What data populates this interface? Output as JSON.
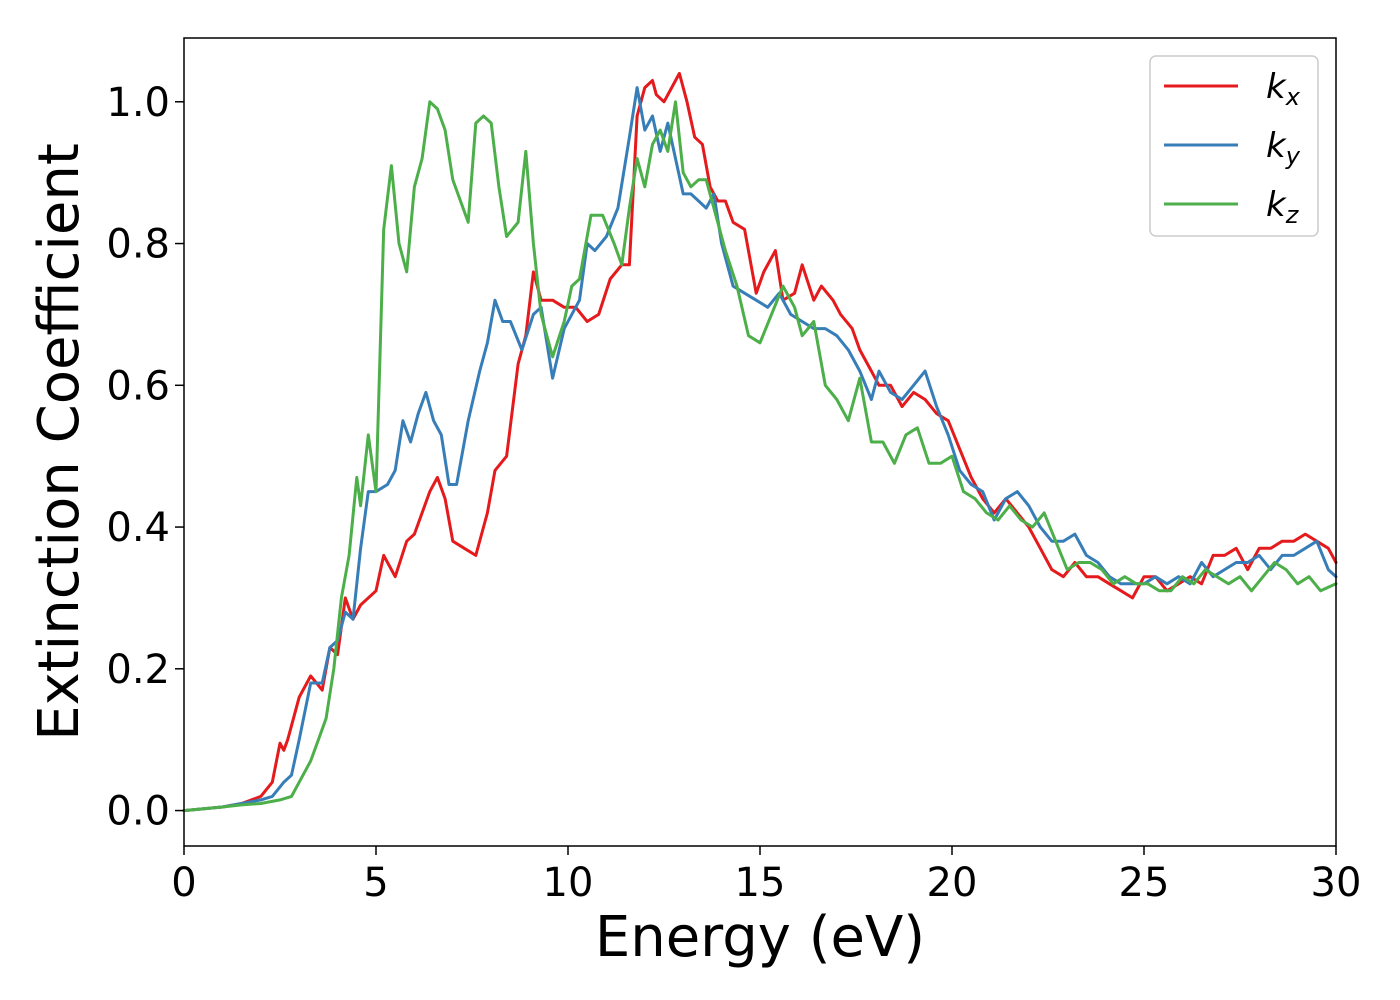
{
  "chart_data": {
    "type": "line",
    "xlabel": "Energy (eV)",
    "ylabel": "Extinction Coefficient",
    "xlim": [
      0,
      30
    ],
    "ylim": [
      -0.05,
      1.09
    ],
    "xticks": [
      "0",
      "5",
      "10",
      "15",
      "20",
      "25",
      "30"
    ],
    "yticks": [
      "0.0",
      "0.2",
      "0.4",
      "0.6",
      "0.8",
      "1.0"
    ],
    "grid": false,
    "legend_position": "top-right",
    "series": [
      {
        "name": "k",
        "subscript": "x",
        "color": "#e41a1c",
        "x": [
          0,
          1,
          1.5,
          2,
          2.3,
          2.5,
          2.6,
          2.7,
          3.0,
          3.3,
          3.6,
          3.8,
          4.0,
          4.2,
          4.4,
          4.6,
          5.0,
          5.2,
          5.5,
          5.8,
          6.0,
          6.4,
          6.6,
          6.8,
          7.0,
          7.3,
          7.6,
          7.9,
          8.1,
          8.4,
          8.7,
          8.9,
          9.1,
          9.3,
          9.6,
          9.9,
          10.2,
          10.5,
          10.8,
          11.1,
          11.4,
          11.6,
          11.8,
          12.0,
          12.2,
          12.3,
          12.5,
          12.7,
          12.9,
          13.1,
          13.3,
          13.5,
          13.7,
          13.9,
          14.1,
          14.3,
          14.6,
          14.9,
          15.1,
          15.4,
          15.6,
          15.9,
          16.1,
          16.4,
          16.6,
          16.9,
          17.1,
          17.4,
          17.6,
          17.9,
          18.1,
          18.4,
          18.7,
          19.0,
          19.3,
          19.6,
          19.9,
          20.2,
          20.5,
          20.8,
          21.1,
          21.4,
          21.7,
          22.0,
          22.3,
          22.6,
          22.9,
          23.2,
          23.5,
          23.8,
          24.1,
          24.4,
          24.7,
          25.0,
          25.3,
          25.6,
          25.9,
          26.2,
          26.5,
          26.8,
          27.1,
          27.4,
          27.7,
          28.0,
          28.3,
          28.6,
          28.9,
          29.2,
          29.5,
          29.8,
          30.0
        ],
        "values": [
          0.0,
          0.005,
          0.01,
          0.02,
          0.04,
          0.095,
          0.085,
          0.1,
          0.16,
          0.19,
          0.17,
          0.23,
          0.22,
          0.3,
          0.27,
          0.29,
          0.31,
          0.36,
          0.33,
          0.38,
          0.39,
          0.45,
          0.47,
          0.44,
          0.38,
          0.37,
          0.36,
          0.42,
          0.48,
          0.5,
          0.63,
          0.67,
          0.76,
          0.72,
          0.72,
          0.71,
          0.71,
          0.69,
          0.7,
          0.75,
          0.77,
          0.77,
          0.98,
          1.02,
          1.03,
          1.01,
          1.0,
          1.02,
          1.04,
          1.0,
          0.95,
          0.94,
          0.88,
          0.86,
          0.86,
          0.83,
          0.82,
          0.73,
          0.76,
          0.79,
          0.72,
          0.73,
          0.77,
          0.72,
          0.74,
          0.72,
          0.7,
          0.68,
          0.65,
          0.62,
          0.6,
          0.6,
          0.57,
          0.59,
          0.58,
          0.56,
          0.55,
          0.51,
          0.47,
          0.44,
          0.42,
          0.44,
          0.42,
          0.4,
          0.37,
          0.34,
          0.33,
          0.35,
          0.33,
          0.33,
          0.32,
          0.31,
          0.3,
          0.33,
          0.33,
          0.31,
          0.32,
          0.33,
          0.32,
          0.36,
          0.36,
          0.37,
          0.34,
          0.37,
          0.37,
          0.38,
          0.38,
          0.39,
          0.38,
          0.37,
          0.35
        ]
      },
      {
        "name": "k",
        "subscript": "y",
        "color": "#377eb8",
        "x": [
          0,
          1,
          1.5,
          2,
          2.3,
          2.6,
          2.8,
          3.0,
          3.3,
          3.6,
          3.8,
          4.0,
          4.2,
          4.4,
          4.6,
          4.8,
          5.0,
          5.3,
          5.5,
          5.7,
          5.9,
          6.1,
          6.3,
          6.5,
          6.7,
          6.9,
          7.1,
          7.4,
          7.7,
          7.9,
          8.1,
          8.3,
          8.5,
          8.8,
          9.1,
          9.3,
          9.6,
          9.9,
          10.1,
          10.3,
          10.5,
          10.7,
          11.0,
          11.3,
          11.6,
          11.8,
          12.0,
          12.2,
          12.4,
          12.6,
          12.8,
          13.0,
          13.2,
          13.4,
          13.6,
          13.8,
          14.0,
          14.3,
          14.6,
          14.9,
          15.2,
          15.5,
          15.8,
          16.1,
          16.4,
          16.7,
          17.0,
          17.3,
          17.6,
          17.9,
          18.1,
          18.4,
          18.7,
          19.0,
          19.3,
          19.6,
          19.9,
          20.2,
          20.5,
          20.8,
          21.1,
          21.4,
          21.7,
          22.0,
          22.3,
          22.6,
          22.9,
          23.2,
          23.5,
          23.8,
          24.1,
          24.4,
          24.7,
          25.0,
          25.3,
          25.6,
          25.9,
          26.2,
          26.5,
          26.8,
          27.1,
          27.4,
          27.7,
          28.0,
          28.3,
          28.6,
          28.9,
          29.2,
          29.5,
          29.8,
          30.0
        ],
        "values": [
          0.0,
          0.005,
          0.01,
          0.015,
          0.02,
          0.04,
          0.05,
          0.1,
          0.18,
          0.18,
          0.23,
          0.24,
          0.28,
          0.27,
          0.37,
          0.45,
          0.45,
          0.46,
          0.48,
          0.55,
          0.52,
          0.56,
          0.59,
          0.55,
          0.53,
          0.46,
          0.46,
          0.55,
          0.62,
          0.66,
          0.72,
          0.69,
          0.69,
          0.65,
          0.7,
          0.71,
          0.61,
          0.68,
          0.7,
          0.72,
          0.8,
          0.79,
          0.81,
          0.85,
          0.95,
          1.02,
          0.96,
          0.98,
          0.93,
          0.97,
          0.92,
          0.87,
          0.87,
          0.86,
          0.85,
          0.87,
          0.8,
          0.74,
          0.73,
          0.72,
          0.71,
          0.73,
          0.7,
          0.69,
          0.68,
          0.68,
          0.67,
          0.65,
          0.62,
          0.58,
          0.62,
          0.59,
          0.58,
          0.6,
          0.62,
          0.57,
          0.53,
          0.48,
          0.46,
          0.45,
          0.41,
          0.44,
          0.45,
          0.43,
          0.4,
          0.38,
          0.38,
          0.39,
          0.36,
          0.35,
          0.33,
          0.32,
          0.32,
          0.32,
          0.33,
          0.32,
          0.33,
          0.32,
          0.35,
          0.33,
          0.34,
          0.35,
          0.35,
          0.36,
          0.34,
          0.36,
          0.36,
          0.37,
          0.38,
          0.34,
          0.33
        ]
      },
      {
        "name": "k",
        "subscript": "z",
        "color": "#4daf4a",
        "x": [
          0,
          1,
          1.5,
          2,
          2.5,
          2.8,
          3.0,
          3.3,
          3.5,
          3.7,
          3.9,
          4.1,
          4.3,
          4.5,
          4.6,
          4.8,
          5.0,
          5.2,
          5.4,
          5.6,
          5.8,
          6.0,
          6.2,
          6.4,
          6.6,
          6.8,
          7.0,
          7.2,
          7.4,
          7.6,
          7.8,
          8.0,
          8.2,
          8.4,
          8.7,
          8.9,
          9.1,
          9.3,
          9.6,
          9.9,
          10.1,
          10.3,
          10.6,
          10.9,
          11.2,
          11.4,
          11.6,
          11.8,
          12.0,
          12.2,
          12.4,
          12.6,
          12.8,
          13.0,
          13.2,
          13.4,
          13.6,
          13.8,
          14.1,
          14.4,
          14.7,
          15.0,
          15.3,
          15.6,
          15.9,
          16.1,
          16.4,
          16.7,
          17.0,
          17.3,
          17.6,
          17.9,
          18.2,
          18.5,
          18.8,
          19.1,
          19.4,
          19.7,
          20.0,
          20.3,
          20.6,
          20.9,
          21.2,
          21.5,
          21.8,
          22.1,
          22.4,
          22.7,
          23.0,
          23.3,
          23.6,
          23.9,
          24.2,
          24.5,
          24.8,
          25.1,
          25.4,
          25.7,
          26.0,
          26.3,
          26.6,
          26.9,
          27.2,
          27.5,
          27.8,
          28.1,
          28.4,
          28.7,
          29.0,
          29.3,
          29.6,
          30.0
        ],
        "values": [
          0.0,
          0.005,
          0.008,
          0.01,
          0.015,
          0.02,
          0.04,
          0.07,
          0.1,
          0.13,
          0.2,
          0.3,
          0.36,
          0.47,
          0.43,
          0.53,
          0.45,
          0.82,
          0.91,
          0.8,
          0.76,
          0.88,
          0.92,
          1.0,
          0.99,
          0.96,
          0.89,
          0.86,
          0.83,
          0.97,
          0.98,
          0.97,
          0.88,
          0.81,
          0.83,
          0.93,
          0.8,
          0.7,
          0.64,
          0.69,
          0.74,
          0.75,
          0.84,
          0.84,
          0.8,
          0.77,
          0.85,
          0.92,
          0.88,
          0.94,
          0.96,
          0.93,
          1.0,
          0.9,
          0.88,
          0.89,
          0.89,
          0.85,
          0.79,
          0.74,
          0.67,
          0.66,
          0.7,
          0.74,
          0.71,
          0.67,
          0.69,
          0.6,
          0.58,
          0.55,
          0.61,
          0.52,
          0.52,
          0.49,
          0.53,
          0.54,
          0.49,
          0.49,
          0.5,
          0.45,
          0.44,
          0.42,
          0.41,
          0.43,
          0.41,
          0.4,
          0.42,
          0.38,
          0.34,
          0.35,
          0.35,
          0.34,
          0.32,
          0.33,
          0.32,
          0.32,
          0.31,
          0.31,
          0.33,
          0.32,
          0.34,
          0.33,
          0.32,
          0.33,
          0.31,
          0.33,
          0.35,
          0.34,
          0.32,
          0.33,
          0.31,
          0.32
        ]
      }
    ]
  }
}
